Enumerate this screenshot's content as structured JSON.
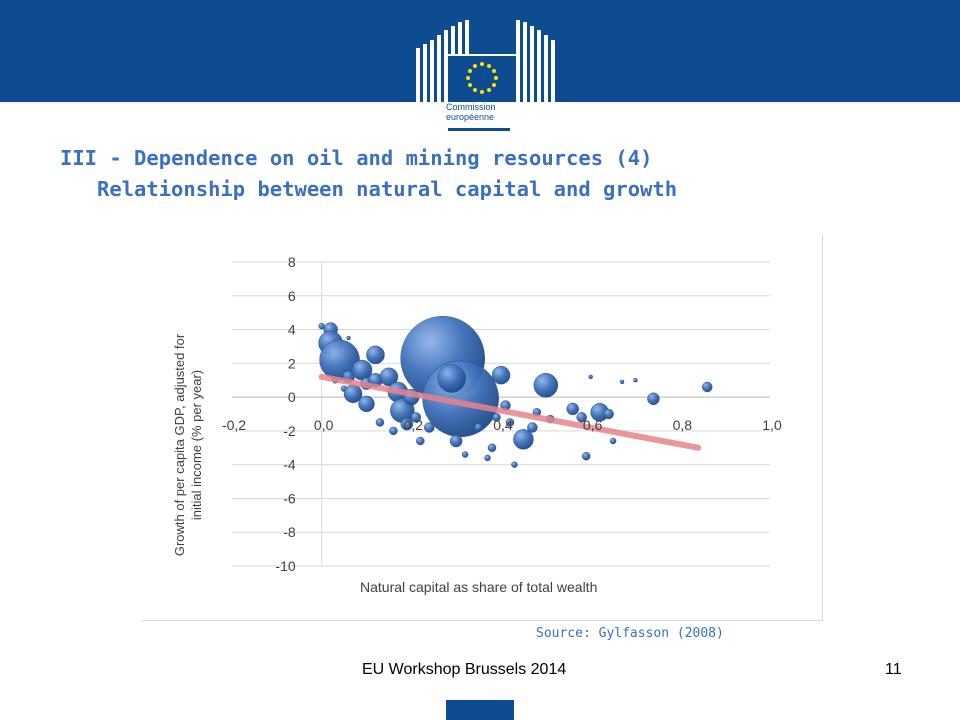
{
  "header": {
    "logo_line1": "Commission",
    "logo_line2": "européenne",
    "title_line1": "III - Dependence on oil and mining resources (4)",
    "title_line2": "Relationship between natural capital and growth"
  },
  "chart_data": {
    "type": "scatter",
    "xlabel": "Natural capital as share of total wealth",
    "ylabel_line1": "Growth of per capita GDP, adjusted for",
    "ylabel_line2": "initial income (% per year)",
    "xlim": [
      -0.2,
      1.0
    ],
    "ylim": [
      -10,
      8
    ],
    "x_ticks": [
      "-0,2",
      "0,0",
      "0,2",
      "0,4",
      "0,6",
      "0,8",
      "1,0"
    ],
    "y_ticks": [
      "8",
      "6",
      "4",
      "2",
      "0",
      "-2",
      "-4",
      "-6",
      "-8",
      "-10"
    ],
    "x_tick_values": [
      -0.2,
      0.0,
      0.2,
      0.4,
      0.6,
      0.8,
      1.0
    ],
    "y_tick_values": [
      8,
      6,
      4,
      2,
      0,
      -2,
      -4,
      -6,
      -8,
      -10
    ],
    "grid": true,
    "trend_line": {
      "x": [
        0.0,
        0.84
      ],
      "y": [
        1.2,
        -3.0
      ]
    },
    "bubbles": [
      {
        "x": 0.0,
        "y": 4.2,
        "size": 3
      },
      {
        "x": 0.02,
        "y": 4.0,
        "size": 7
      },
      {
        "x": 0.02,
        "y": 3.2,
        "size": 12
      },
      {
        "x": 0.04,
        "y": 2.2,
        "size": 20
      },
      {
        "x": 0.06,
        "y": 3.5,
        "size": 2
      },
      {
        "x": 0.03,
        "y": 1.0,
        "size": 3
      },
      {
        "x": 0.05,
        "y": 0.5,
        "size": 3
      },
      {
        "x": 0.06,
        "y": 1.2,
        "size": 6
      },
      {
        "x": 0.07,
        "y": 0.2,
        "size": 9
      },
      {
        "x": 0.09,
        "y": 1.6,
        "size": 10
      },
      {
        "x": 0.1,
        "y": 0.8,
        "size": 6
      },
      {
        "x": 0.1,
        "y": -0.4,
        "size": 8
      },
      {
        "x": 0.12,
        "y": 2.5,
        "size": 9
      },
      {
        "x": 0.12,
        "y": 1.0,
        "size": 7
      },
      {
        "x": 0.13,
        "y": -1.5,
        "size": 4
      },
      {
        "x": 0.15,
        "y": 1.2,
        "size": 9
      },
      {
        "x": 0.16,
        "y": -2.0,
        "size": 4
      },
      {
        "x": 0.17,
        "y": 0.3,
        "size": 10
      },
      {
        "x": 0.18,
        "y": -0.8,
        "size": 12
      },
      {
        "x": 0.19,
        "y": -1.6,
        "size": 6
      },
      {
        "x": 0.2,
        "y": 0.0,
        "size": 8
      },
      {
        "x": 0.21,
        "y": -1.2,
        "size": 5
      },
      {
        "x": 0.22,
        "y": -2.6,
        "size": 4
      },
      {
        "x": 0.24,
        "y": -1.8,
        "size": 5
      },
      {
        "x": 0.27,
        "y": 2.3,
        "size": 42
      },
      {
        "x": 0.31,
        "y": -0.1,
        "size": 38
      },
      {
        "x": 0.29,
        "y": 1.1,
        "size": 14
      },
      {
        "x": 0.3,
        "y": -2.6,
        "size": 6
      },
      {
        "x": 0.32,
        "y": -3.4,
        "size": 3
      },
      {
        "x": 0.35,
        "y": -1.8,
        "size": 4
      },
      {
        "x": 0.37,
        "y": -3.6,
        "size": 3
      },
      {
        "x": 0.38,
        "y": -3.0,
        "size": 4
      },
      {
        "x": 0.39,
        "y": -1.2,
        "size": 4
      },
      {
        "x": 0.4,
        "y": 1.3,
        "size": 9
      },
      {
        "x": 0.41,
        "y": -0.5,
        "size": 5
      },
      {
        "x": 0.42,
        "y": -1.5,
        "size": 4
      },
      {
        "x": 0.43,
        "y": -4.0,
        "size": 3
      },
      {
        "x": 0.45,
        "y": -2.5,
        "size": 10
      },
      {
        "x": 0.47,
        "y": -1.8,
        "size": 5
      },
      {
        "x": 0.48,
        "y": -0.9,
        "size": 4
      },
      {
        "x": 0.5,
        "y": 0.7,
        "size": 12
      },
      {
        "x": 0.51,
        "y": -1.3,
        "size": 4
      },
      {
        "x": 0.56,
        "y": -0.7,
        "size": 6
      },
      {
        "x": 0.58,
        "y": -1.2,
        "size": 5
      },
      {
        "x": 0.59,
        "y": -3.5,
        "size": 4
      },
      {
        "x": 0.6,
        "y": 1.2,
        "size": 2
      },
      {
        "x": 0.62,
        "y": -0.9,
        "size": 9
      },
      {
        "x": 0.64,
        "y": -1.0,
        "size": 5
      },
      {
        "x": 0.65,
        "y": -2.6,
        "size": 3
      },
      {
        "x": 0.67,
        "y": 0.9,
        "size": 2
      },
      {
        "x": 0.7,
        "y": 1.0,
        "size": 2
      },
      {
        "x": 0.74,
        "y": -0.1,
        "size": 6
      },
      {
        "x": 0.86,
        "y": 0.6,
        "size": 5
      }
    ]
  },
  "source": "Source: Gylfasson (2008)",
  "footer": {
    "event": "EU Workshop Brussels 2014",
    "page_number": "11"
  },
  "colors": {
    "brand_blue": "#0e4c92",
    "title_blue": "#3b6fc0",
    "bubble": "#3d6fb8",
    "trend": "#e8838b",
    "grid": "#d9d9d9"
  }
}
